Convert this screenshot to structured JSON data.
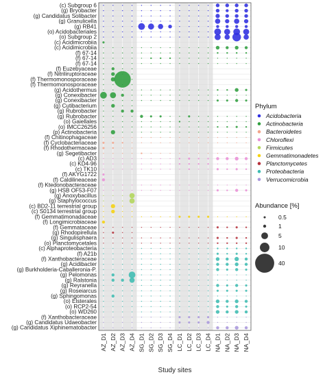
{
  "chart_data": {
    "type": "bubble",
    "title": "",
    "xlabel": "Study sites",
    "ylabel": "",
    "x": [
      "AZ_D1",
      "AZ_D2",
      "AZ_D3",
      "AZ_D4",
      "SG_D1",
      "SG_D2",
      "SG_D3",
      "SG_D4",
      "LC_D1",
      "LC_D2",
      "LC_D3",
      "LC_D4",
      "NA_D1",
      "NA_D2",
      "NA_D3",
      "NA_D4"
    ],
    "site_groups": [
      "AZ",
      "SG",
      "LC",
      "NA"
    ],
    "shaded_groups": [
      "AZ",
      "LC"
    ],
    "grid": true,
    "legend_placement": "right",
    "phylum_legend": {
      "title": "Phylum",
      "items": [
        {
          "name": "Acidobacteria",
          "color": "#2f2fe0"
        },
        {
          "name": "Actinobacteria",
          "color": "#2f9e3e"
        },
        {
          "name": "Bacteroidetes",
          "color": "#f2a58c"
        },
        {
          "name": "Chloroflexi",
          "color": "#e98fd6"
        },
        {
          "name": "Firmicutes",
          "color": "#b2d65a"
        },
        {
          "name": "Gemmatimonadetes",
          "color": "#f5d20f"
        },
        {
          "name": "Planctomycetes",
          "color": "#b5303a"
        },
        {
          "name": "Proteobacteria",
          "color": "#3dbcb2"
        },
        {
          "name": "Verrucomicrobia",
          "color": "#a997dc"
        }
      ]
    },
    "size_legend": {
      "title": "Abundance [%]",
      "values": [
        0.5,
        1,
        5,
        10,
        40
      ]
    },
    "taxa": [
      "(c) Subgroup 6",
      "(g) Bryobacter",
      "(g) Candidatus Solibacter",
      "(g) Granulicella",
      "(g) RB41",
      "(o) Acidobacteriales",
      "(o) Subgroup 2",
      "(c) Acidimicrobiia",
      "(c) Acidimicrobiia",
      "(f) 67-14",
      "(f) 67-14",
      "(f) 67-14",
      "(f) Euzebyaceae",
      "(f) Nitriliruptoraceae",
      "(f) Thermomonosporaceae",
      "(f) Thermomonosporaceae",
      "(g) Acidothermus",
      "(g) Conexibacter",
      "(g) Conexibacter",
      "(g) Cutibacterium",
      "(g) Rubrobacter",
      "(g) Rubrobacter",
      "(o) Gaiellales",
      "(o) IMCC26256",
      "(p) Actinobacteria",
      "(f) Chitinophagaceae",
      "(f) Cyclobacteriaceae",
      "(f) Rhodothermaceae",
      "(g) Segetibacter",
      "(c) AD3",
      "(c) KD4-96",
      "(c) TK10",
      "(f) AKYG1722",
      "(f) Caldilineaceae",
      "(f) Ktedonobacteraceae",
      "(g) HSB OF53-F07",
      "(g) Anoxybacillus",
      "(g) Staphylococcus",
      "(c) BD2-11 terrestrial group",
      "(c) S0134 terrestrial group",
      "(f) Gemmatimonadaceae",
      "(f) Longimicrobiaceae",
      "(f) Gemmataceae",
      "(g) Rhodopirellula",
      "(g) Singulisphaera",
      "(o) Planctomycetales",
      "(c) Alphaproteobacteria",
      "(f) A21b",
      "(f) Xanthobacteraceae",
      "(g) Acidibacter",
      "(g) Burkholderia-Caballeronia-P.",
      "(g) Pelomonas",
      "(g) Ralstonia",
      "(g) Reyranella",
      "(g) Roseiarcus",
      "(g) Sphingomonas",
      "(o) Elsterales",
      "(o) RCP2-54",
      "(o) WD260",
      "(f) Xanthobacteraceae",
      "(g) Candidatus Udaeobacter",
      "(g) Candidatus Xiphinematobacter"
    ],
    "phylum_per_taxon": [
      0,
      0,
      0,
      0,
      0,
      0,
      0,
      1,
      1,
      1,
      1,
      1,
      1,
      1,
      1,
      1,
      1,
      1,
      1,
      1,
      1,
      1,
      1,
      1,
      1,
      2,
      2,
      2,
      2,
      3,
      3,
      3,
      3,
      3,
      3,
      3,
      4,
      4,
      5,
      5,
      5,
      5,
      6,
      6,
      6,
      6,
      7,
      7,
      7,
      7,
      7,
      7,
      7,
      7,
      7,
      7,
      7,
      7,
      7,
      8,
      8,
      8
    ],
    "abundance_matrix": [
      [
        0.1,
        0.1,
        0.1,
        0.1,
        0.1,
        0.1,
        0.1,
        0.1,
        0.1,
        0.1,
        0.1,
        0.1,
        1.5,
        1.5,
        1.5,
        1.5
      ],
      [
        0.1,
        0.1,
        0.1,
        0.1,
        0.1,
        0.1,
        0.1,
        0.1,
        0.1,
        0.1,
        0.1,
        0.1,
        1.5,
        1,
        1.5,
        1.5
      ],
      [
        0.1,
        0.1,
        0.1,
        0.1,
        0.1,
        0.1,
        0.1,
        0.1,
        0.1,
        0.1,
        0.1,
        0.1,
        2,
        1.5,
        1.5,
        1.5
      ],
      [
        0.1,
        0.1,
        0.1,
        0.1,
        0.1,
        0.1,
        0.1,
        0.1,
        0.1,
        0.1,
        0.1,
        0.1,
        3,
        2,
        3,
        2
      ],
      [
        0.1,
        0.1,
        0.1,
        0.1,
        5,
        4,
        3,
        1.5,
        0.1,
        0.1,
        0.1,
        0.1,
        1,
        1,
        1,
        1
      ],
      [
        0.1,
        0.1,
        0.1,
        0.1,
        0.1,
        0.1,
        0.1,
        0.1,
        0.1,
        0.1,
        0.1,
        0.1,
        5,
        4,
        5,
        4
      ],
      [
        0.1,
        0.1,
        0.1,
        0.1,
        0.1,
        0.1,
        0.1,
        0.1,
        0.1,
        0.1,
        0.1,
        0.1,
        4,
        3,
        8,
        3
      ],
      [
        0.5,
        0,
        0,
        0,
        0,
        0,
        0,
        0,
        0,
        0,
        0,
        0,
        0,
        0,
        0,
        0
      ],
      [
        0.1,
        0.1,
        0.1,
        0.1,
        0.1,
        0.1,
        0.1,
        0.1,
        0.1,
        0.1,
        0.1,
        0.1,
        1.5,
        1,
        1.5,
        1
      ],
      [
        0.1,
        0.1,
        0.1,
        0.1,
        0.1,
        0.1,
        0.1,
        0.1,
        0.1,
        0.1,
        0.1,
        0.1,
        0.3,
        0.3,
        0.3,
        0.3
      ],
      [
        0.1,
        0.1,
        0.1,
        0.1,
        0.1,
        0.3,
        0.3,
        0.3,
        0.1,
        0.1,
        0.1,
        0.1,
        0.1,
        0.1,
        0.1,
        0.1
      ],
      [
        0.1,
        0.1,
        0.1,
        0.1,
        0.1,
        0.1,
        0.1,
        0.1,
        0.1,
        0.1,
        0.1,
        0.1,
        0.1,
        0.1,
        0.1,
        0.1
      ],
      [
        0.1,
        1,
        0.1,
        0.1,
        0,
        0,
        0,
        0,
        0,
        0,
        0,
        0,
        0,
        0,
        0,
        0
      ],
      [
        0.1,
        1.5,
        0.1,
        0.1,
        0,
        0,
        0,
        0,
        0,
        0,
        0,
        0,
        0,
        0,
        0,
        0
      ],
      [
        0.1,
        2,
        30,
        0.1,
        0,
        0,
        0,
        0,
        0,
        0,
        0,
        0,
        0,
        0,
        0,
        0
      ],
      [
        0.1,
        0.1,
        0.1,
        0.1,
        0,
        0,
        0,
        0,
        0,
        0,
        0,
        0,
        0,
        0,
        0,
        0
      ],
      [
        0.1,
        0.1,
        0.1,
        0.1,
        0.1,
        0.1,
        0.1,
        0.1,
        0.1,
        0.1,
        0.1,
        0.1,
        0.3,
        0.3,
        1.5,
        0.5
      ],
      [
        5,
        4,
        1,
        0.1,
        0.1,
        0.1,
        0.1,
        0.1,
        0.1,
        0.1,
        0.1,
        0.1,
        0.1,
        0.1,
        0.1,
        0.1
      ],
      [
        0.1,
        0.1,
        0.1,
        0.1,
        0.1,
        0.1,
        0.1,
        0.1,
        0.1,
        0.1,
        0.1,
        0.1,
        0.5,
        0.5,
        1,
        0.5
      ],
      [
        0.1,
        1.5,
        0.1,
        0.1,
        0,
        0,
        0,
        0,
        0,
        0,
        0,
        0,
        0,
        0,
        0,
        0
      ],
      [
        0.1,
        0.1,
        1,
        1,
        0,
        0,
        0,
        0,
        0,
        0,
        0,
        0,
        0,
        0,
        0,
        0
      ],
      [
        0.1,
        0.1,
        0.1,
        0.1,
        1,
        0.5,
        0.5,
        0.1,
        0.1,
        0.5,
        0.1,
        0.1,
        0.1,
        0.1,
        0.1,
        0.1
      ],
      [
        0.1,
        0.1,
        0.1,
        0.1,
        0.1,
        0.1,
        0.1,
        0.1,
        0.3,
        0.1,
        0.1,
        0.1,
        0.1,
        0.1,
        0.1,
        0.1
      ],
      [
        0.1,
        0.1,
        0.1,
        0.1,
        0.1,
        0.1,
        0.1,
        0.1,
        0.1,
        0.1,
        0.1,
        0.1,
        0.3,
        0.3,
        0.5,
        0.3
      ],
      [
        0.1,
        2,
        0.1,
        0.1,
        0.1,
        0.1,
        0.1,
        0.1,
        0.1,
        0.1,
        0.1,
        0.1,
        0.1,
        0.1,
        0.1,
        0.1
      ],
      [
        0.1,
        0.1,
        0.1,
        0.1,
        0.1,
        0.1,
        0.1,
        0.1,
        0.1,
        0.1,
        0.1,
        0.1,
        0.1,
        0.1,
        0.1,
        0.1
      ],
      [
        0.5,
        0.5,
        0.3,
        0.1,
        0.1,
        0.1,
        0.1,
        0.1,
        0.1,
        0.1,
        0.1,
        0.1,
        0.1,
        0.1,
        0.1,
        0.1
      ],
      [
        0.5,
        0.3,
        0.1,
        0.1,
        0,
        0,
        0,
        0,
        0,
        0,
        0,
        0,
        0,
        0,
        0,
        0
      ],
      [
        0.1,
        0.1,
        0.1,
        0.1,
        0.3,
        0.1,
        0.1,
        0.1,
        0.1,
        0.1,
        0.1,
        0.1,
        0.1,
        0.1,
        0.1,
        0.1
      ],
      [
        0.1,
        0.1,
        0.1,
        0.1,
        0.1,
        0.1,
        0.1,
        0.1,
        0.3,
        0.5,
        0.3,
        0.3,
        1,
        1,
        1.5,
        1
      ],
      [
        0.1,
        0.1,
        0.1,
        0.1,
        0.1,
        0.1,
        0.1,
        0.1,
        0.3,
        0.3,
        0.3,
        0.3,
        0.1,
        0.1,
        0.1,
        0.1
      ],
      [
        0.1,
        0.1,
        0.1,
        0.1,
        0.1,
        0.1,
        0.1,
        0.1,
        0.1,
        0.3,
        0.1,
        0.1,
        0.5,
        0.3,
        0.5,
        0.3
      ],
      [
        0.5,
        0,
        0,
        0,
        0,
        0,
        0,
        0,
        0,
        0,
        0,
        0,
        0,
        0,
        0,
        0
      ],
      [
        1,
        0,
        0,
        0,
        0,
        0,
        0,
        0,
        0,
        0,
        0,
        0,
        0,
        0,
        0,
        0
      ],
      [
        0.1,
        0.1,
        0.1,
        0.1,
        0.1,
        0.1,
        0.1,
        0.1,
        0.1,
        0.1,
        0.1,
        0.1,
        0.1,
        0.1,
        0.1,
        0.1
      ],
      [
        0.1,
        0.1,
        0.1,
        0.1,
        0.1,
        0.1,
        0.1,
        0.1,
        0.1,
        0.1,
        0.1,
        0.1,
        0.5,
        0.3,
        1,
        0.5
      ],
      [
        0.1,
        0.1,
        0.1,
        3,
        0,
        0,
        0,
        0,
        0,
        0,
        0,
        0,
        0,
        0,
        0,
        0
      ],
      [
        0.1,
        0.1,
        0.1,
        3,
        0,
        0,
        0,
        0,
        0,
        0,
        0,
        0,
        0,
        0,
        0,
        0
      ],
      [
        0.1,
        2,
        0.1,
        0.1,
        0,
        0,
        0,
        0,
        0,
        0,
        0,
        0,
        0,
        0,
        0,
        0
      ],
      [
        0.1,
        1.5,
        0.1,
        0.1,
        0,
        0,
        0,
        0,
        0,
        0,
        0,
        0,
        0,
        0,
        0,
        0
      ],
      [
        0.1,
        0.1,
        0.1,
        0.1,
        0.1,
        0.1,
        0.1,
        0.1,
        0.5,
        0.5,
        0.5,
        0.5,
        0.1,
        0.1,
        0.1,
        0.1
      ],
      [
        1,
        0,
        0,
        0,
        0,
        0,
        0,
        0,
        0,
        0,
        0,
        0,
        0,
        0,
        0,
        0
      ],
      [
        0.1,
        0.1,
        0.1,
        0.1,
        0.1,
        0.1,
        0.1,
        0.1,
        0.1,
        0.1,
        0.1,
        0.1,
        0.5,
        0.3,
        0.5,
        0.3
      ],
      [
        0.1,
        0.5,
        0.1,
        0.1,
        0,
        0,
        0,
        0,
        0,
        0,
        0,
        0,
        0,
        0,
        0,
        0
      ],
      [
        0.1,
        0.1,
        0.1,
        0.1,
        0.1,
        0.1,
        0.1,
        0.1,
        0.1,
        0.1,
        0.1,
        0.1,
        0.5,
        0.3,
        0.5,
        0.3
      ],
      [
        0.1,
        0.1,
        0.1,
        0.1,
        0.1,
        0.1,
        0.1,
        0.1,
        0.1,
        0.1,
        0.1,
        0.1,
        0.3,
        0.3,
        0.3,
        0.3
      ],
      [
        0.1,
        0.1,
        0.1,
        0.1,
        0.1,
        0.1,
        0.1,
        0.1,
        0.1,
        0.1,
        0.1,
        0.1,
        0.3,
        0.3,
        0.3,
        0.3
      ],
      [
        0.1,
        0.1,
        0.1,
        0.1,
        0.1,
        0.1,
        0.1,
        0.1,
        0.1,
        0.1,
        0.1,
        0.1,
        0.5,
        0.3,
        0.5,
        0.3
      ],
      [
        0.1,
        0.1,
        0.1,
        0.1,
        0.1,
        0.1,
        0.1,
        0.1,
        0.1,
        0.1,
        0.1,
        0.1,
        1.5,
        1,
        2,
        1
      ],
      [
        0.1,
        0.1,
        0.1,
        0.1,
        0.1,
        0.1,
        0.1,
        0.1,
        0.1,
        0.1,
        0.1,
        0.1,
        1,
        1,
        1.5,
        1
      ],
      [
        0.1,
        0.1,
        0.1,
        0.1,
        0.1,
        0.1,
        0.1,
        0.1,
        0.1,
        0.1,
        0.1,
        0.1,
        1,
        0.5,
        1,
        0.5
      ],
      [
        0.1,
        1,
        0.1,
        5,
        0.1,
        0.1,
        0.1,
        0.1,
        0.1,
        0.1,
        0.1,
        0.1,
        0.1,
        0.1,
        0.1,
        0.1
      ],
      [
        0.1,
        1,
        1,
        3,
        0.1,
        0.1,
        0.1,
        0.1,
        0.1,
        0.1,
        0.1,
        0.1,
        0.1,
        0.1,
        0.1,
        0.1
      ],
      [
        0.1,
        0.1,
        0.1,
        0.1,
        0.1,
        0.1,
        0.1,
        0.1,
        0.1,
        0.1,
        0.1,
        0.1,
        1,
        0.5,
        1,
        0.5
      ],
      [
        0.1,
        0.1,
        0.1,
        0.1,
        0.1,
        0.1,
        0.1,
        0.1,
        0.1,
        0.1,
        0.1,
        0.1,
        0.5,
        0.5,
        0.5,
        0.5
      ],
      [
        0.1,
        1,
        0.1,
        0.1,
        0.1,
        0.1,
        0.1,
        0.1,
        0.1,
        0.1,
        0.1,
        0.1,
        0.1,
        0.1,
        0.1,
        0.1
      ],
      [
        0.1,
        0.1,
        0.1,
        0.1,
        0.1,
        0.1,
        0.1,
        0.1,
        0.1,
        0.1,
        0.1,
        0.1,
        1.5,
        1,
        1.5,
        1
      ],
      [
        0.1,
        0.1,
        0.1,
        0.1,
        0.1,
        0.1,
        0.1,
        0.1,
        0.1,
        0.1,
        0.1,
        0.1,
        1,
        0.5,
        1,
        0.5
      ],
      [
        0.1,
        0.1,
        0.1,
        0.1,
        0.1,
        0.1,
        0.1,
        0.1,
        0.1,
        0.1,
        0.1,
        0.1,
        1.5,
        1,
        1.5,
        1
      ],
      [
        0.1,
        0.1,
        0.1,
        0.1,
        0.1,
        0.1,
        0.1,
        0.1,
        0.5,
        0.5,
        0.5,
        0.5,
        0.1,
        0.1,
        0.1,
        0.1
      ],
      [
        0.1,
        0.1,
        0.1,
        0.1,
        0.1,
        0.1,
        0.1,
        0.1,
        0.5,
        0.5,
        0.5,
        1,
        0.1,
        0.1,
        0.1,
        0.1
      ],
      [
        0.1,
        0.1,
        0.1,
        0.1,
        0.1,
        0.1,
        0.1,
        0.1,
        0.1,
        0.1,
        0.1,
        0.1,
        1,
        1,
        1.5,
        1
      ]
    ]
  }
}
